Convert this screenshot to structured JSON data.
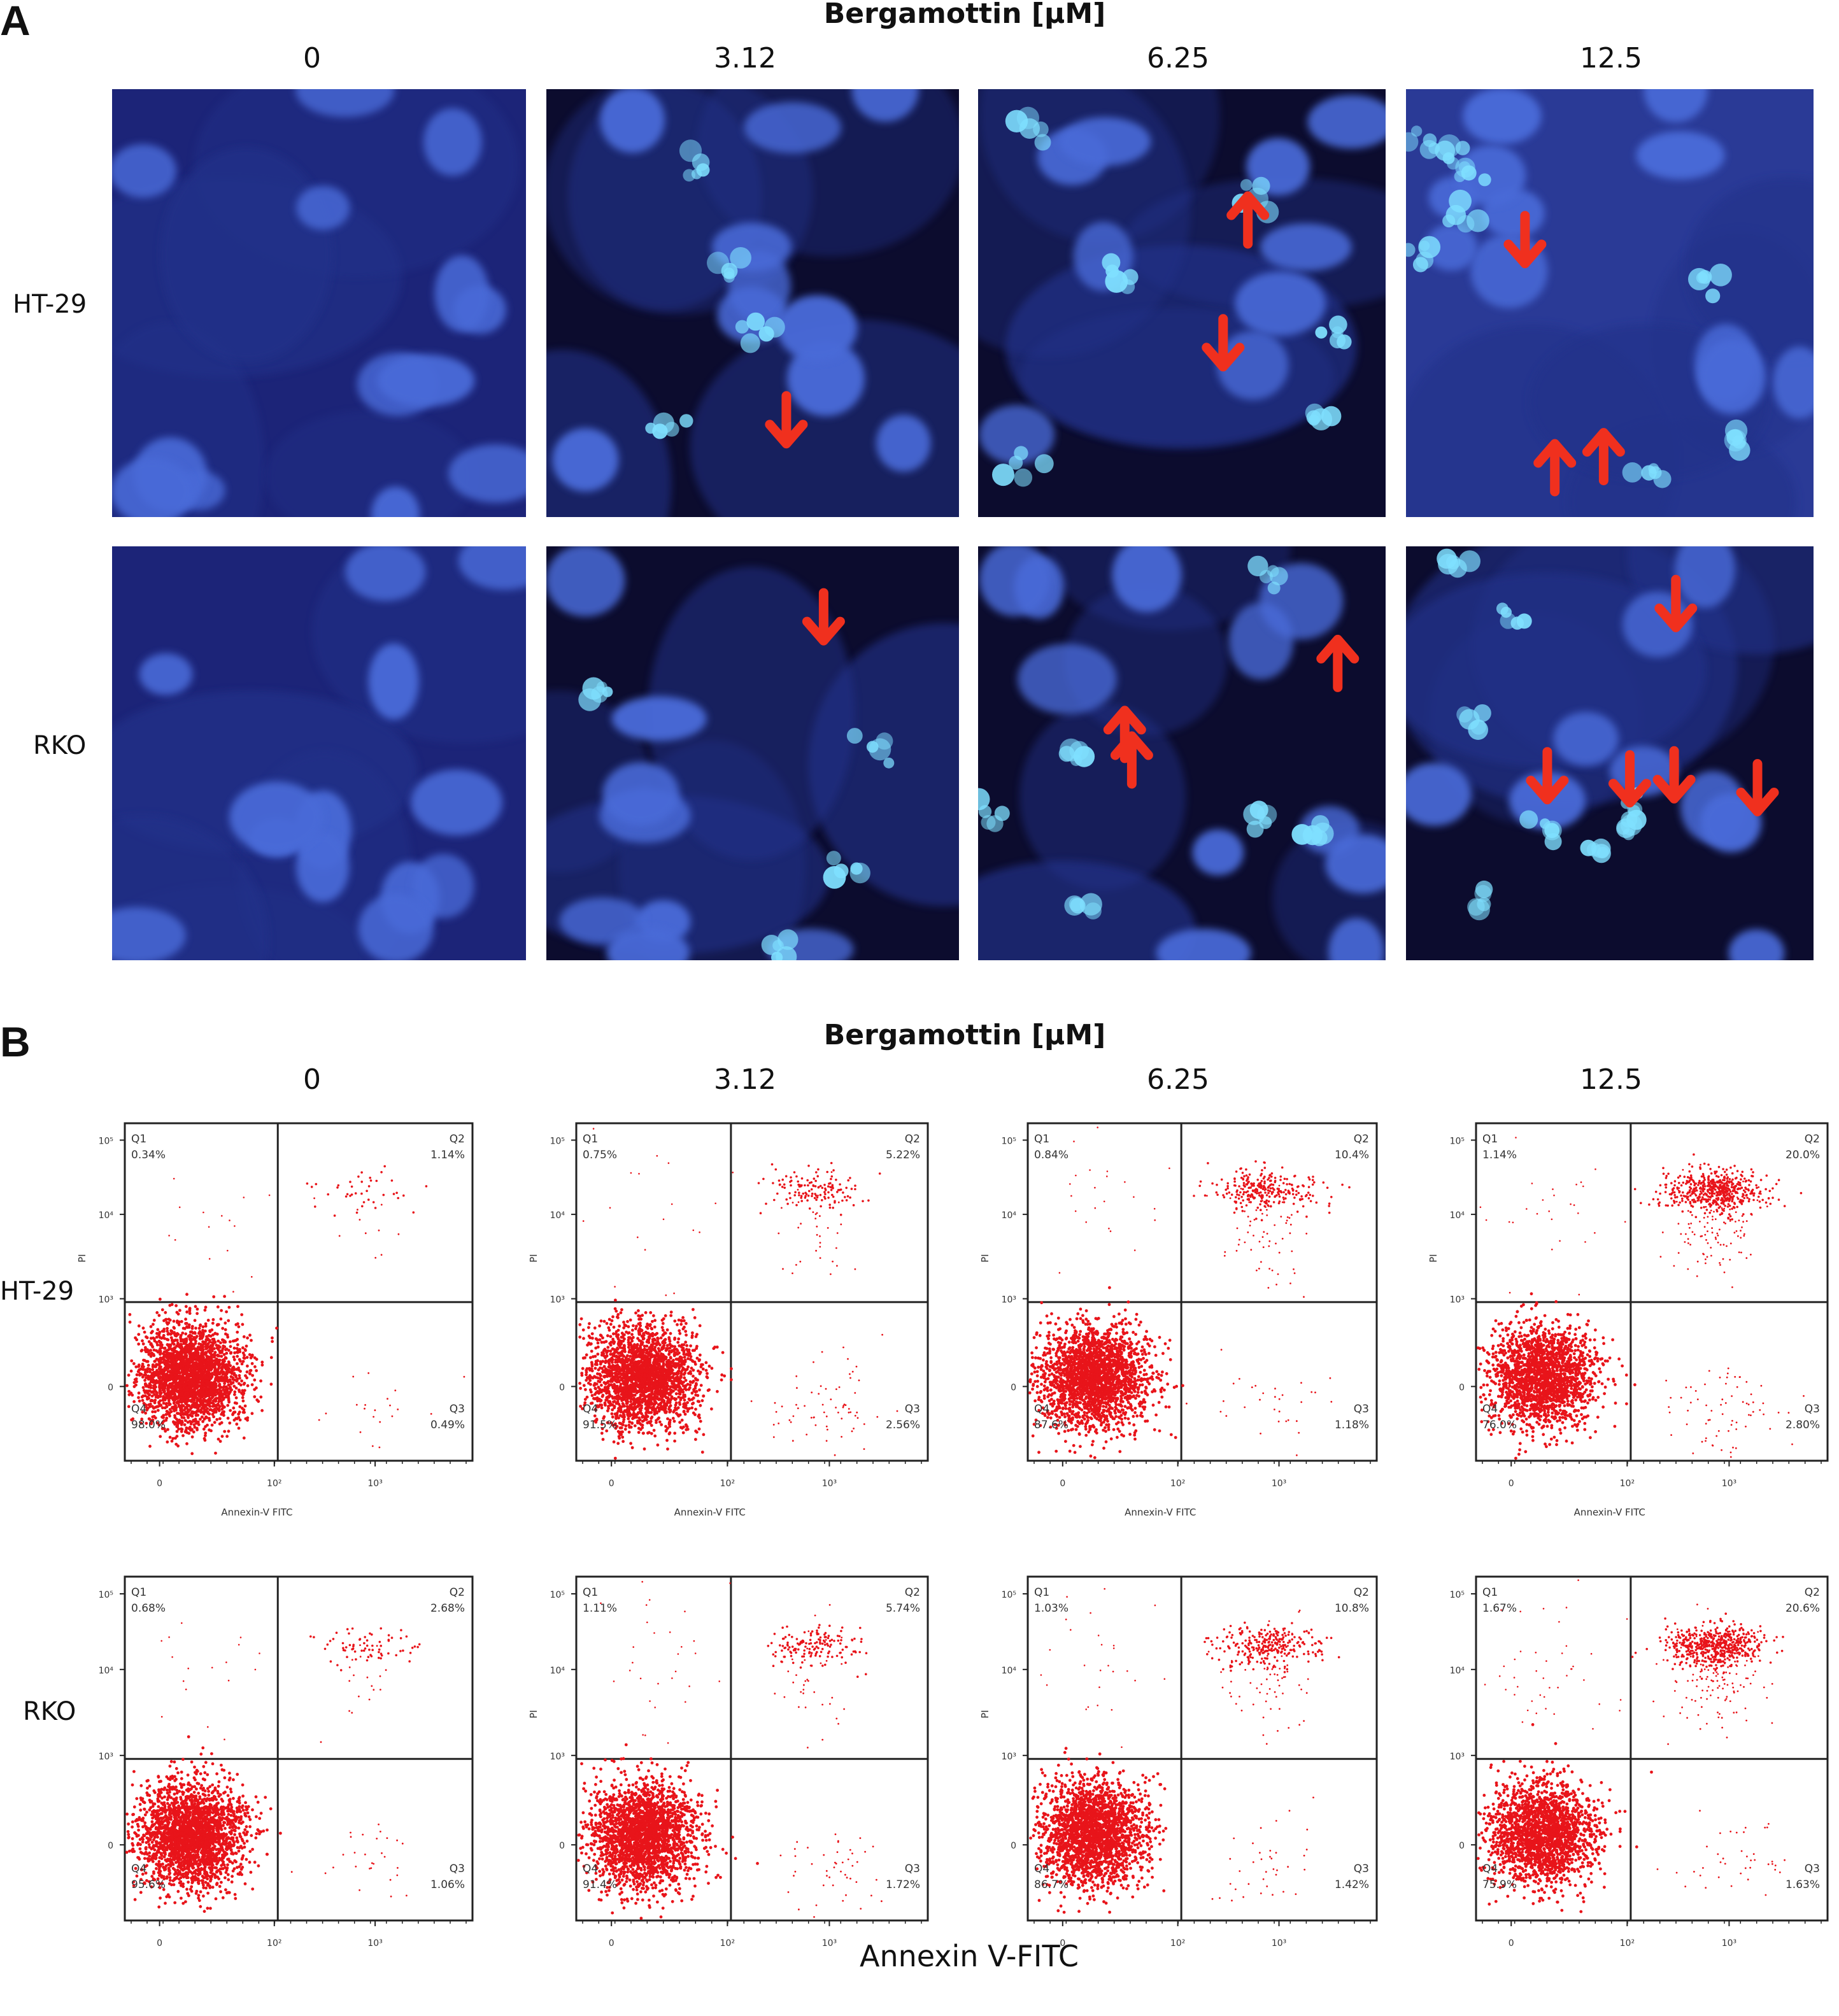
{
  "panel_a": {
    "letter": "A",
    "title": "Bergamottin [μM]",
    "columns": [
      "0",
      "3.12",
      "6.25",
      "12.5"
    ],
    "rows": [
      "HT-29",
      "RKO"
    ]
  },
  "panel_b": {
    "letter": "B",
    "title": "Bergamottin [μM]",
    "columns": [
      "0",
      "3.12",
      "6.25",
      "12.5"
    ],
    "rows": [
      "HT-29",
      "RKO"
    ],
    "bottom_label": "Annexin V-FITC"
  },
  "chart_data": [
    {
      "type": "scatter",
      "row": "HT-29",
      "conc": "0",
      "xlabel": "Annexin-V FITC",
      "ylabel": "PI",
      "x_ticks": [
        "0",
        "10²",
        "10³"
      ],
      "y_ticks": [
        "0",
        "10³",
        "10⁴",
        "10⁵"
      ],
      "quadrants": {
        "Q1": "0.34%",
        "Q2": "1.14%",
        "Q3": "0.49%",
        "Q4": "98.0%"
      }
    },
    {
      "type": "scatter",
      "row": "HT-29",
      "conc": "3.12",
      "xlabel": "Annexin-V FITC",
      "ylabel": "PI",
      "x_ticks": [
        "0",
        "10²",
        "10³"
      ],
      "y_ticks": [
        "0",
        "10³",
        "10⁴",
        "10⁵"
      ],
      "quadrants": {
        "Q1": "0.75%",
        "Q2": "5.22%",
        "Q3": "2.56%",
        "Q4": "91.5%"
      }
    },
    {
      "type": "scatter",
      "row": "HT-29",
      "conc": "6.25",
      "xlabel": "Annexin-V FITC",
      "ylabel": "PI",
      "x_ticks": [
        "0",
        "10²",
        "10³"
      ],
      "y_ticks": [
        "0",
        "10³",
        "10⁴",
        "10⁵"
      ],
      "quadrants": {
        "Q1": "0.84%",
        "Q2": "10.4%",
        "Q3": "1.18%",
        "Q4": "87.6%"
      }
    },
    {
      "type": "scatter",
      "row": "HT-29",
      "conc": "12.5",
      "xlabel": "Annexin-V FITC",
      "ylabel": "PI",
      "x_ticks": [
        "0",
        "10²",
        "10³"
      ],
      "y_ticks": [
        "0",
        "10³",
        "10⁴",
        "10⁵"
      ],
      "quadrants": {
        "Q1": "1.14%",
        "Q2": "20.0%",
        "Q3": "2.80%",
        "Q4": "76.0%"
      }
    },
    {
      "type": "scatter",
      "row": "RKO",
      "conc": "0",
      "xlabel": "",
      "ylabel": "",
      "x_ticks": [
        "0",
        "10²",
        "10³"
      ],
      "y_ticks": [
        "0",
        "10³",
        "10⁴",
        "10⁵"
      ],
      "quadrants": {
        "Q1": "0.68%",
        "Q2": "2.68%",
        "Q3": "1.06%",
        "Q4": "95.6%"
      }
    },
    {
      "type": "scatter",
      "row": "RKO",
      "conc": "3.12",
      "xlabel": "",
      "ylabel": "PI",
      "x_ticks": [
        "0",
        "10²",
        "10³"
      ],
      "y_ticks": [
        "0",
        "10³",
        "10⁴",
        "10⁵"
      ],
      "quadrants": {
        "Q1": "1.11%",
        "Q2": "5.74%",
        "Q3": "1.72%",
        "Q4": "91.4%"
      }
    },
    {
      "type": "scatter",
      "row": "RKO",
      "conc": "6.25",
      "xlabel": "",
      "ylabel": "PI",
      "x_ticks": [
        "0",
        "10²",
        "10³"
      ],
      "y_ticks": [
        "0",
        "10³",
        "10⁴",
        "10⁵"
      ],
      "quadrants": {
        "Q1": "1.03%",
        "Q2": "10.8%",
        "Q3": "1.42%",
        "Q4": "86.7%"
      }
    },
    {
      "type": "scatter",
      "row": "RKO",
      "conc": "12.5",
      "xlabel": "",
      "ylabel": "",
      "x_ticks": [
        "0",
        "10²",
        "10³"
      ],
      "y_ticks": [
        "0",
        "10³",
        "10⁴",
        "10⁵"
      ],
      "quadrants": {
        "Q1": "1.67%",
        "Q2": "20.6%",
        "Q3": "1.63%",
        "Q4": "75.9%"
      }
    }
  ],
  "colors": {
    "nucleus": "#4a6ad8",
    "background_dark": "#0c0c2e",
    "arrow": "#f0301e",
    "dots": "#e8141a",
    "apoptotic": "#7fe0ff"
  }
}
